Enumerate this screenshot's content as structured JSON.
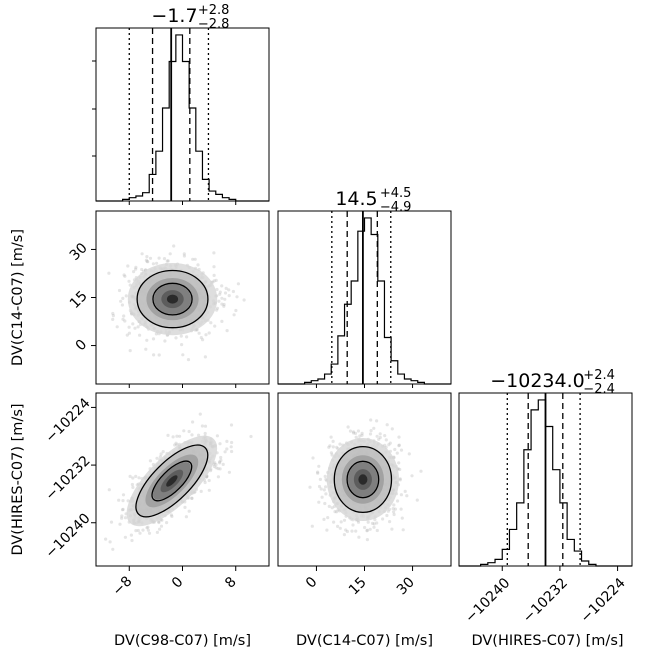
{
  "chart_data": {
    "type": "corner",
    "parameters": [
      {
        "label": "DV(C98-C07) [m/s]",
        "range": [
          -13,
          13
        ],
        "ticks": [
          -8,
          0,
          8
        ],
        "tick_labels": [
          "−8",
          "0",
          "8"
        ],
        "median": -1.7,
        "sig1": [
          -4.5,
          1.1
        ],
        "sig2": [
          -8.0,
          3.9
        ],
        "title_value": "−1.7",
        "title_plus": "+2.8",
        "title_minus": "−2.8",
        "hist_edges": [
          -13,
          13
        ],
        "hist_counts": [
          0,
          0,
          0,
          0,
          0.01,
          0.02,
          0.03,
          0.05,
          0.16,
          0.3,
          0.56,
          0.84,
          1.0,
          0.84,
          0.56,
          0.3,
          0.13,
          0.06,
          0.04,
          0.02,
          0.01,
          0,
          0,
          0,
          0,
          0
        ]
      },
      {
        "label": "DV(C14-C07) [m/s]",
        "range": [
          -12,
          42
        ],
        "ticks": [
          0,
          15,
          30
        ],
        "tick_labels": [
          "0",
          "15",
          "30"
        ],
        "median": 14.5,
        "sig1": [
          9.6,
          19.0
        ],
        "sig2": [
          4.8,
          23.2
        ],
        "title_value": "14.5",
        "title_plus": "+4.5",
        "title_minus": "−4.9",
        "hist_counts": [
          0,
          0,
          0,
          0,
          0.01,
          0.02,
          0.03,
          0.06,
          0.12,
          0.29,
          0.48,
          0.62,
          0.92,
          1.0,
          0.9,
          0.62,
          0.28,
          0.14,
          0.06,
          0.03,
          0.02,
          0.01,
          0,
          0,
          0,
          0
        ]
      },
      {
        "label": "DV(HIRES-C07) [m/s]",
        "range": [
          -10246,
          -10222
        ],
        "ticks": [
          -10240,
          -10232,
          -10224
        ],
        "tick_labels": [
          "−10240",
          "−10232",
          "−10224"
        ],
        "median": -10234.0,
        "sig1": [
          -10236.4,
          -10231.6
        ],
        "sig2": [
          -10239.3,
          -10229.2
        ],
        "title_value": "−10234.0",
        "title_plus": "+2.4",
        "title_minus": "−2.4",
        "hist_counts": [
          0,
          0,
          0,
          0.01,
          0.02,
          0.04,
          0.1,
          0.22,
          0.38,
          0.7,
          0.94,
          1.0,
          0.84,
          0.58,
          0.38,
          0.16,
          0.09,
          0.03,
          0.01,
          0,
          0,
          0,
          0,
          0
        ]
      }
    ],
    "pairs": [
      {
        "x": 0,
        "y": 1,
        "center": [
          -1.5,
          14.5
        ],
        "sx": 2.8,
        "sy": 4.7,
        "corr": 0.0
      },
      {
        "x": 0,
        "y": 2,
        "center": [
          -1.6,
          -10234.2
        ],
        "sx": 2.8,
        "sy": 2.4,
        "corr": 0.72
      },
      {
        "x": 1,
        "y": 2,
        "center": [
          14.5,
          -10234.0
        ],
        "sx": 4.7,
        "sy": 2.4,
        "corr": 0.0
      }
    ],
    "colors": {
      "ink": "#000000",
      "scatter": "#b4b4b4"
    }
  }
}
